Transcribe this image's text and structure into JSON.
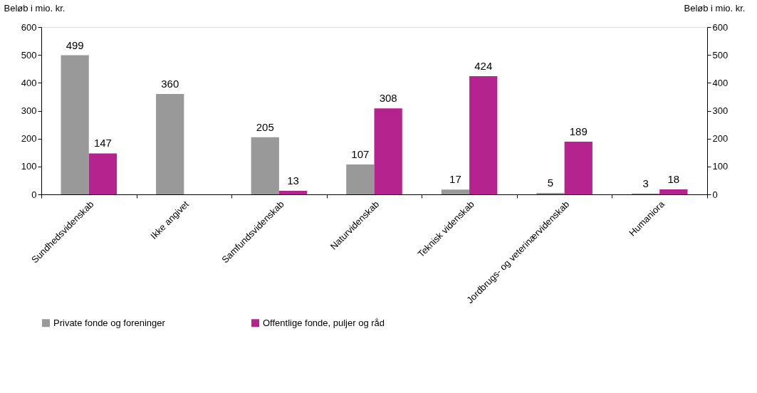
{
  "chart_data": {
    "type": "bar",
    "ylabel": "Beløb i mio. kr.",
    "y2label": "Beløb i mio. kr.",
    "categories": [
      "Sundhedsvidenskab",
      "Ikke angivet",
      "Samfundsvidenskab",
      "Naturvidenskab",
      "Teknisk videnskab",
      "Jordbrugs- og veterinærvidenskab",
      "Humaniora"
    ],
    "series": [
      {
        "name": "Private fonde og foreninger",
        "color": "#999999",
        "values": [
          499,
          360,
          205,
          107,
          17,
          5,
          3
        ]
      },
      {
        "name": "Offentlige fonde, puljer og råd",
        "color": "#b5238f",
        "values": [
          147,
          null,
          13,
          308,
          424,
          189,
          18
        ]
      }
    ],
    "ylim": [
      0,
      600
    ],
    "yticks": [
      0,
      100,
      200,
      300,
      400,
      500,
      600
    ],
    "y2lim": [
      0,
      600
    ],
    "y2ticks": [
      0,
      100,
      200,
      300,
      400,
      500,
      600
    ],
    "data_labels": true,
    "grid": false,
    "legend": "bottom"
  }
}
